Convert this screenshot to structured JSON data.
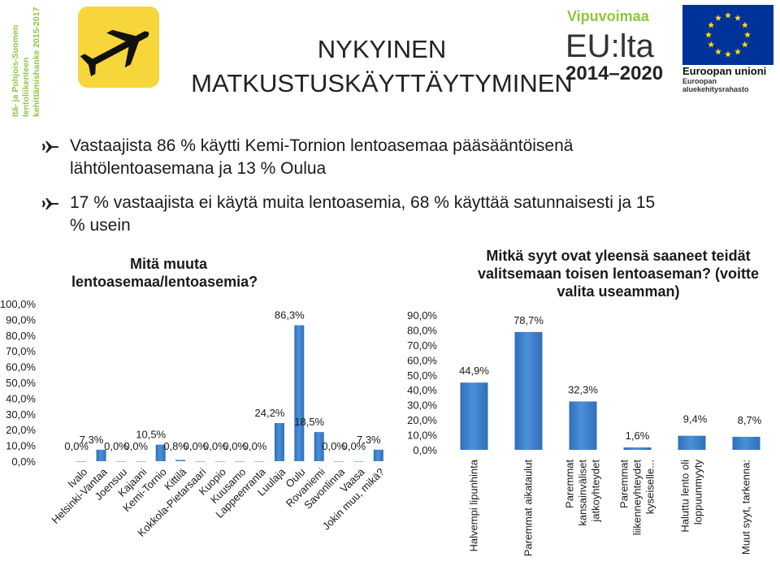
{
  "header": {
    "title_line1": "NYKYINEN",
    "title_line2": "MATKUSTUSKÄYTTÄYTYMINEN",
    "sidebar_lines": [
      "Itä- ja Pohjois-Suomen",
      "lentoliikenteen",
      "kehittämishanke 2015-2017"
    ],
    "eu_brand": "Vipuvoimaa",
    "eu_text": "EU:lta",
    "eu_years": "2014–2020",
    "eu_flag_title": "Euroopan unioni",
    "eu_flag_sub": "Euroopan aluekehitysrahasto",
    "colors": {
      "brand_green": "#8dc63f",
      "eu_blue": "#003399",
      "eu_star": "#ffdd00",
      "airport_yellow": "#f6d63a"
    }
  },
  "bullets": [
    {
      "icon": "airplane-icon",
      "lines": [
        "Vastaajista 86 % käytti Kemi-Tornion lentoasemaa pääsääntöisenä",
        "lähtölentoasemana ja 13 % Oulua"
      ]
    },
    {
      "icon": "airplane-icon",
      "lines": [
        "17 % vastaajista ei käytä muita lentoasemia, 68 % käyttää satunnaisesti ja 15",
        "% usein"
      ]
    }
  ],
  "chart_data": [
    {
      "type": "bar",
      "title": [
        "Mitä muuta",
        "lentoasemaa/lentoasemia?"
      ],
      "categories": [
        "Ivalo",
        "Helsinki-Vantaa",
        "Joensuu",
        "Kajaani",
        "Kemi-Tornio",
        "Kittilä",
        "Kokkola-Pietarsaari",
        "Kuopio",
        "Kuusamo",
        "Lappeenranta",
        "Luulaja",
        "Oulu",
        "Rovaniemi",
        "Savonlinna",
        "Vaasa",
        "Jokin muu, mikä?"
      ],
      "values": [
        0.0,
        7.3,
        0.0,
        0.0,
        10.5,
        0.8,
        0.0,
        0.0,
        0.0,
        0.0,
        24.2,
        86.3,
        18.5,
        0.0,
        0.0,
        7.3
      ],
      "data_labels": [
        "0,0%",
        "7,3%",
        "0,0%",
        "0,0%",
        "10,5%",
        "0,8%",
        "0,0%",
        "0,0%",
        "0,0%",
        "0,0%",
        "24,2%",
        "86,3%",
        "18,5%",
        "0,0%",
        "0,0%",
        "7,3%"
      ],
      "ylim": [
        0,
        100
      ],
      "yticks": [
        "0,0%",
        "10,0%",
        "20,0%",
        "30,0%",
        "40,0%",
        "50,0%",
        "60,0%",
        "70,0%",
        "80,0%",
        "90,0%",
        "100,0%"
      ],
      "bar_color": "#4a90d9"
    },
    {
      "type": "bar",
      "title": [
        "Mitkä syyt ovat yleensä saaneet teidät",
        "valitsemaan toisen lentoaseman? (voitte",
        "valita useamman)"
      ],
      "categories": [
        [
          "Halvempi lipunhinta"
        ],
        [
          "Paremmat aikataulut"
        ],
        [
          "Paremmat",
          "kansainväliset",
          "jatkoyhteydet"
        ],
        [
          "Paremmat",
          "liikenneyhteydet",
          "kyseiselle..."
        ],
        [
          "Haluttu lento oli",
          "loppuunmyyty"
        ],
        [
          "Muut syyt, tarkenna:"
        ]
      ],
      "values": [
        44.9,
        78.7,
        32.3,
        1.6,
        9.4,
        8.7
      ],
      "data_labels": [
        "44,9%",
        "78,7%",
        "32,3%",
        "1,6%",
        "9,4%",
        "8,7%"
      ],
      "ylim": [
        0,
        90
      ],
      "yticks": [
        "0,0%",
        "10,0%",
        "20,0%",
        "30,0%",
        "40,0%",
        "50,0%",
        "60,0%",
        "70,0%",
        "80,0%",
        "90,0%"
      ],
      "bar_color": "#4a90d9"
    }
  ]
}
